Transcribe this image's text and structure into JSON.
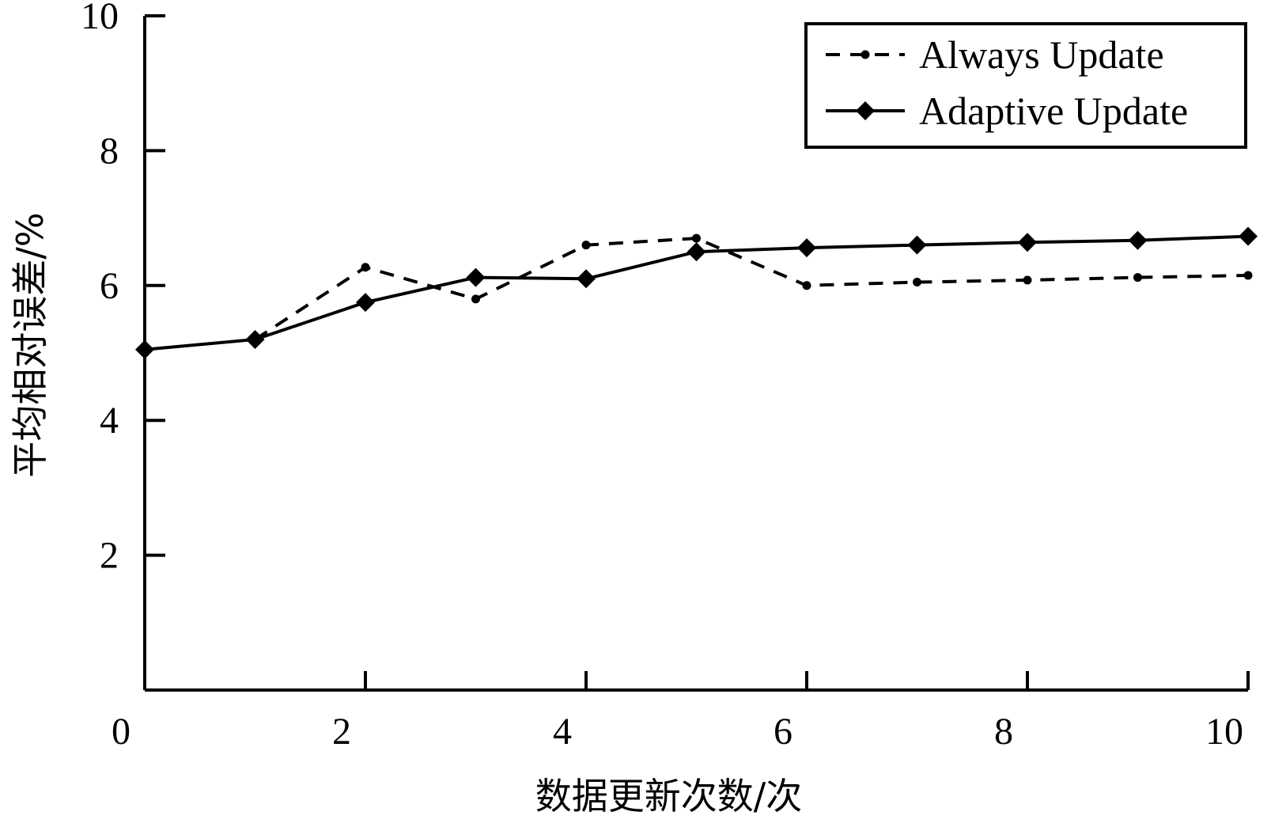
{
  "chart_data": {
    "type": "line",
    "title": "",
    "xlabel": "数据更新次数/次",
    "ylabel": "平均相对误差/%",
    "xlim": [
      0,
      10
    ],
    "ylim": [
      0,
      10
    ],
    "x_ticks": [
      "0",
      "2",
      "4",
      "6",
      "8",
      "10"
    ],
    "y_ticks": [
      "2",
      "4",
      "6",
      "8",
      "10"
    ],
    "x": [
      0,
      1,
      2,
      3,
      4,
      5,
      6,
      7,
      8,
      9,
      10
    ],
    "series": [
      {
        "name": "Always Update",
        "style": "dashed",
        "marker": "circle",
        "color": "#000000",
        "values": [
          null,
          5.2,
          6.27,
          5.8,
          6.6,
          6.7,
          6.0,
          6.05,
          6.08,
          6.12,
          6.15
        ]
      },
      {
        "name": "Adaptive Update",
        "style": "solid",
        "marker": "diamond",
        "color": "#000000",
        "values": [
          5.05,
          5.2,
          5.75,
          6.12,
          6.1,
          6.5,
          6.56,
          6.6,
          6.64,
          6.67,
          6.73
        ]
      }
    ],
    "grid": false,
    "legend_position": "top-right"
  }
}
